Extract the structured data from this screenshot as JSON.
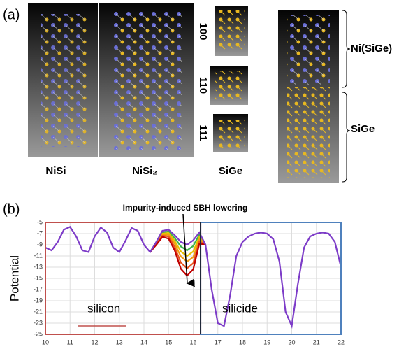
{
  "panel_a": {
    "label": "(a)",
    "structures": [
      "NiSi",
      "NiSi₂",
      "SiGe"
    ],
    "orientations": [
      "100",
      "110",
      "111"
    ],
    "regions": [
      "Ni(SiGe)",
      "SiGe"
    ]
  },
  "chart_data": {
    "type": "line",
    "panel_label": "(b)",
    "ylabel": "Potential",
    "annotation": "Impurity-induced SBH lowering",
    "region_labels": [
      "silicon",
      "silicide"
    ],
    "boundary_x": 16.3,
    "xlim": [
      10,
      22
    ],
    "xticks": [
      10,
      11,
      12,
      13,
      14,
      15,
      16,
      17,
      18,
      19,
      20,
      21,
      22
    ],
    "ylim": [
      -25,
      -5
    ],
    "yticks": [
      -5,
      -7,
      -9,
      -11,
      -13,
      -15,
      -17,
      -19,
      -21,
      -23,
      -25
    ],
    "grid": true,
    "series": [
      {
        "color": "#3cb44b",
        "x": [
          14.25,
          14.5,
          14.75,
          15,
          15.25,
          15.5,
          15.75,
          16,
          16.25,
          16.5
        ],
        "values": [
          -10.3,
          -8.6,
          -6.8,
          -6.6,
          -7.8,
          -9.3,
          -10,
          -9.2,
          -7.2,
          -9
        ]
      },
      {
        "color": "#e8c000",
        "x": [
          14.25,
          14.5,
          14.75,
          15,
          15.25,
          15.5,
          15.75,
          16,
          16.25,
          16.5
        ],
        "values": [
          -10.3,
          -8.7,
          -7,
          -6.9,
          -8.3,
          -10.2,
          -11,
          -10.2,
          -7.6,
          -9
        ]
      },
      {
        "color": "#f39c12",
        "x": [
          14.25,
          14.5,
          14.75,
          15,
          15.25,
          15.5,
          15.75,
          16,
          16.25,
          16.5
        ],
        "values": [
          -10.3,
          -8.8,
          -7.2,
          -7.2,
          -8.8,
          -11.1,
          -12,
          -11.2,
          -8,
          -9
        ]
      },
      {
        "color": "#e8541e",
        "x": [
          14.25,
          14.5,
          14.75,
          15,
          15.25,
          15.5,
          15.75,
          16,
          16.25,
          16.5
        ],
        "values": [
          -10.3,
          -8.9,
          -7.4,
          -7.5,
          -9.4,
          -12.2,
          -13.2,
          -12.3,
          -8.4,
          -9
        ]
      },
      {
        "color": "#c00000",
        "x": [
          14.25,
          14.5,
          14.75,
          15,
          15.25,
          15.5,
          15.75,
          16,
          16.25,
          16.5
        ],
        "values": [
          -10.3,
          -9,
          -7.6,
          -7.9,
          -10,
          -13.3,
          -14.5,
          -13.4,
          -8.8,
          -9
        ]
      },
      {
        "color": "#7d3cc8",
        "x": [
          10,
          10.25,
          10.5,
          10.75,
          11,
          11.25,
          11.5,
          11.75,
          12,
          12.25,
          12.5,
          12.75,
          13,
          13.25,
          13.5,
          13.75,
          14,
          14.25,
          14.5,
          14.75,
          15,
          15.25,
          15.5,
          15.75,
          16,
          16.25,
          16.5,
          16.75,
          17,
          17.25,
          17.5,
          17.75,
          18,
          18.25,
          18.5,
          18.75,
          19,
          19.25,
          19.5,
          19.75,
          20,
          20.25,
          20.5,
          20.75,
          21,
          21.25,
          21.5,
          21.75,
          22
        ],
        "values": [
          -9.5,
          -10,
          -8.5,
          -6.3,
          -5.8,
          -7.5,
          -10,
          -10.3,
          -7.5,
          -5.9,
          -6.8,
          -9.5,
          -10.3,
          -8.3,
          -6,
          -6.5,
          -9,
          -10.3,
          -8.5,
          -6.5,
          -6.3,
          -7.3,
          -8.5,
          -9,
          -8.2,
          -6.8,
          -9,
          -17,
          -23,
          -23.5,
          -18,
          -11,
          -8.5,
          -7.5,
          -7,
          -6.8,
          -7,
          -8,
          -12,
          -21,
          -23.5,
          -16,
          -9.5,
          -7.5,
          -7,
          -6.8,
          -7,
          -8.5,
          -13
        ]
      }
    ]
  }
}
